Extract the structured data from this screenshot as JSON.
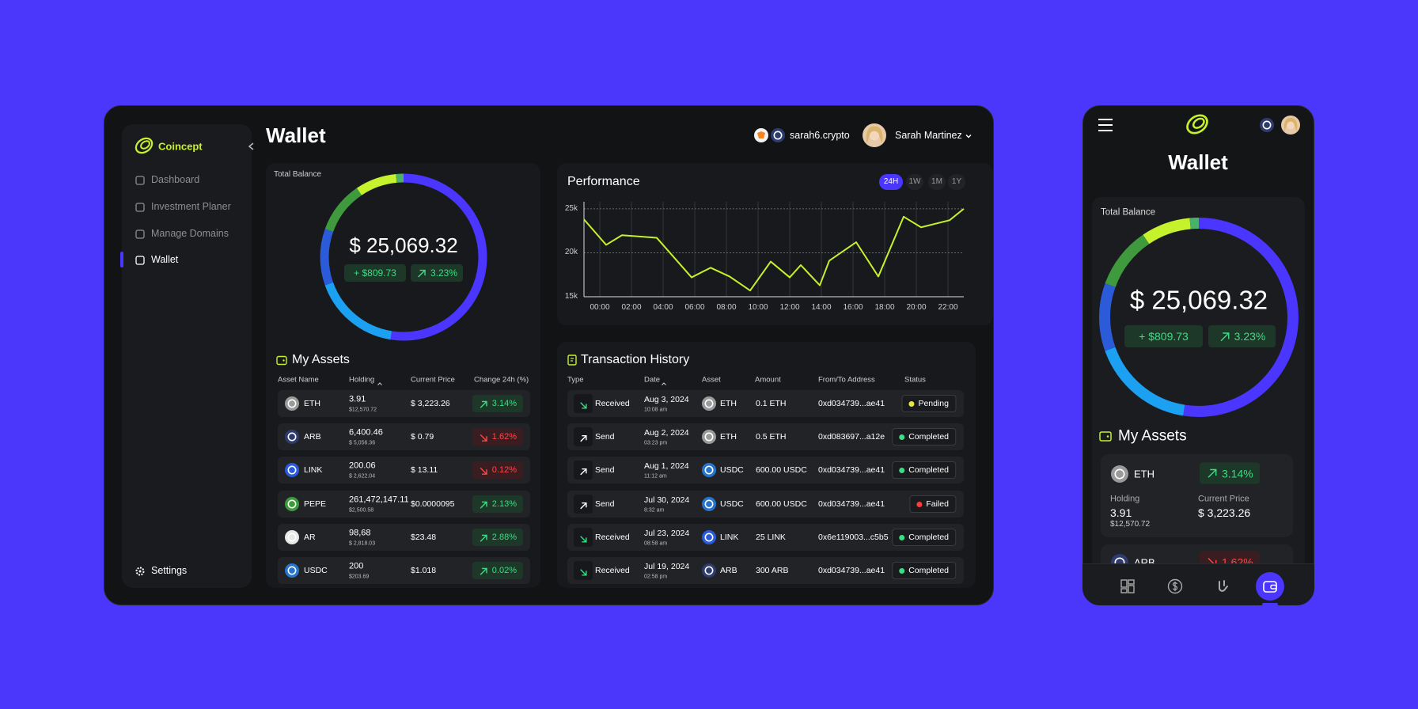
{
  "sidebar": {
    "brand": "Coincept",
    "nav": [
      "Dashboard",
      "Investment Planer",
      "Manage Domains",
      "Wallet"
    ],
    "settings": "Settings"
  },
  "header": {
    "title": "Wallet",
    "domain": "sarah6.crypto",
    "user": "Sarah Martinez"
  },
  "balance": {
    "label": "Total Balance",
    "amount": "$ 25,069.32",
    "change": "+ $809.73",
    "change_pct": "3.23%",
    "trend": "up",
    "allocation": [
      {
        "color": "#4a36ff",
        "value": 52.5
      },
      {
        "color": "#1ba0f2",
        "value": 17
      },
      {
        "color": "#2b5bd9",
        "value": 11
      },
      {
        "color": "#3f9a3e",
        "value": 10
      },
      {
        "color": "#c6f12d",
        "value": 8
      },
      {
        "color": "#4bb06a",
        "value": 1.5
      }
    ]
  },
  "performance_ranges": [
    "24H",
    "1W",
    "1M",
    "1Y"
  ],
  "chart_data": {
    "type": "line",
    "title": "Performance",
    "x": [
      -1,
      0.4,
      1.4,
      3.6,
      5.8,
      7,
      8.2,
      9.5,
      10.8,
      12,
      12.7,
      13.9,
      14.5,
      16.2,
      17.6,
      19.2,
      20.3,
      22.1,
      23
    ],
    "series": [
      {
        "color": "#c6f12d",
        "values": [
          23800,
          20900,
          22000,
          21700,
          17200,
          18300,
          17300,
          15700,
          19000,
          17200,
          18600,
          16300,
          19100,
          21200,
          17300,
          24100,
          22900,
          23700,
          25000
        ]
      }
    ],
    "xlim": [
      -1,
      23
    ],
    "ylim": [
      15000,
      25800
    ],
    "xticks": [
      {
        "value": 0,
        "label": "00:00"
      },
      {
        "value": 2,
        "label": "02:00"
      },
      {
        "value": 4,
        "label": "04:00"
      },
      {
        "value": 6,
        "label": "06:00"
      },
      {
        "value": 8,
        "label": "08:00"
      },
      {
        "value": 10,
        "label": "10:00"
      },
      {
        "value": 12,
        "label": "12:00"
      },
      {
        "value": 14,
        "label": "14:00"
      },
      {
        "value": 16,
        "label": "16:00"
      },
      {
        "value": 18,
        "label": "18:00"
      },
      {
        "value": 20,
        "label": "20:00"
      },
      {
        "value": 22,
        "label": "22:00"
      }
    ],
    "yticks": [
      {
        "value": 15000,
        "label": "15k"
      },
      {
        "value": 20000,
        "label": "20k"
      },
      {
        "value": 25000,
        "label": "25k"
      }
    ],
    "grid": true
  },
  "assets": {
    "title": "My Assets",
    "columns": [
      "Asset Name",
      "Holding",
      "Current Price",
      "Change 24h (%)"
    ],
    "rows": [
      {
        "name": "ETH",
        "holding": "3.91",
        "holding_usd": "$12,570.72",
        "price": "$ 3,223.26",
        "change": "3.14%",
        "trend": "up",
        "icon_color": "#9a9a9a"
      },
      {
        "name": "ARB",
        "holding": "6,400.46",
        "holding_usd": "$ 5,056.36",
        "price": "$ 0.79",
        "change": "1.62%",
        "trend": "down",
        "icon_color": "#2d3b6e"
      },
      {
        "name": "LINK",
        "holding": "200.06",
        "holding_usd": "$ 2,622.04",
        "price": "$ 13.11",
        "change": "0.12%",
        "trend": "down",
        "icon_color": "#2a5ada"
      },
      {
        "name": "PEPE",
        "holding": "261,472,147.11",
        "holding_usd": "$2,500.58",
        "price": "$0.0000095",
        "change": "2.13%",
        "trend": "up",
        "icon_color": "#3d9a3a"
      },
      {
        "name": "AR",
        "holding": "98,68",
        "holding_usd": "$ 2,818.03",
        "price": "$23.48",
        "change": "2.88%",
        "trend": "up",
        "icon_color": "#e8e8e8"
      },
      {
        "name": "USDC",
        "holding": "200",
        "holding_usd": "$203.69",
        "price": "$1.018",
        "change": "0.02%",
        "trend": "up",
        "icon_color": "#2775ca"
      }
    ]
  },
  "transactions": {
    "title": "Transaction History",
    "columns": [
      "Type",
      "Date",
      "Asset",
      "Amount",
      "From/To Address",
      "Status"
    ],
    "rows": [
      {
        "type": "Received",
        "direction": "in",
        "date": "Aug 3, 2024",
        "time": "10:08 am",
        "asset": "ETH",
        "icon_color": "#9a9a9a",
        "amount": "0.1 ETH",
        "address": "0xd034739...ae41",
        "status": "Pending",
        "status_color": "#e8e83a"
      },
      {
        "type": "Send",
        "direction": "out",
        "date": "Aug 2, 2024",
        "time": "03:23 pm",
        "asset": "ETH",
        "icon_color": "#9a9a9a",
        "amount": "0.5 ETH",
        "address": "0xd083697...a12e",
        "status": "Completed",
        "status_color": "#3ddc84"
      },
      {
        "type": "Send",
        "direction": "out",
        "date": "Aug 1, 2024",
        "time": "11:12 am",
        "asset": "USDC",
        "icon_color": "#2775ca",
        "amount": "600.00 USDC",
        "address": "0xd034739...ae41",
        "status": "Completed",
        "status_color": "#3ddc84"
      },
      {
        "type": "Send",
        "direction": "out",
        "date": "Jul 30, 2024",
        "time": "8:32 am",
        "asset": "USDC",
        "icon_color": "#2775ca",
        "amount": "600.00 USDC",
        "address": "0xd034739...ae41",
        "status": "Failed",
        "status_color": "#ff3b3b"
      },
      {
        "type": "Received",
        "direction": "in",
        "date": "Jul 23, 2024",
        "time": "08:58 am",
        "asset": "LINK",
        "icon_color": "#2a5ada",
        "amount": "25 LINK",
        "address": "0x6e119003...c5b5",
        "status": "Completed",
        "status_color": "#3ddc84"
      },
      {
        "type": "Received",
        "direction": "in",
        "date": "Jul 19, 2024",
        "time": "02:58 pm",
        "asset": "ARB",
        "icon_color": "#2d3b6e",
        "amount": "300 ARB",
        "address": "0xd034739...ae41",
        "status": "Completed",
        "status_color": "#3ddc84"
      }
    ]
  }
}
